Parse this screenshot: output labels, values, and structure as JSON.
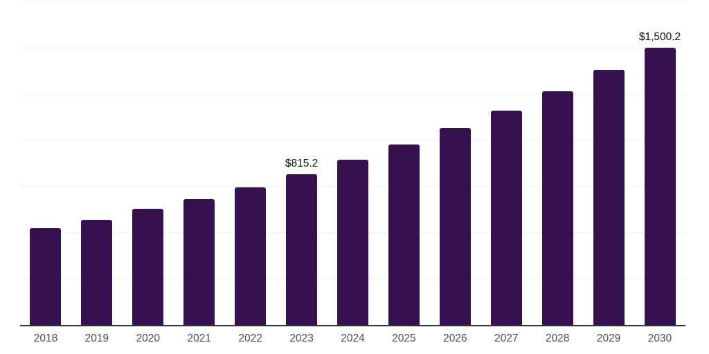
{
  "chart_data": {
    "type": "bar",
    "categories": [
      "2018",
      "2019",
      "2020",
      "2021",
      "2022",
      "2023",
      "2024",
      "2025",
      "2026",
      "2027",
      "2028",
      "2029",
      "2030"
    ],
    "values": [
      525,
      567,
      629,
      679,
      746,
      815.2,
      893,
      975,
      1065,
      1159,
      1264,
      1380,
      1500.2
    ],
    "value_labels": {
      "2023": "$815.2",
      "2030": "$1,500.2"
    },
    "title": "",
    "xlabel": "",
    "ylabel": "",
    "ylim": [
      0,
      1750
    ],
    "gridline_interval": 250,
    "grid": "horizontal",
    "legend": "none",
    "colors": {
      "bar": "#361150",
      "axis": "#333333",
      "gridline": "#f2f2f2",
      "tick_label": "#4d4d4d",
      "value_label": "#111111",
      "background": "#ffffff"
    }
  }
}
